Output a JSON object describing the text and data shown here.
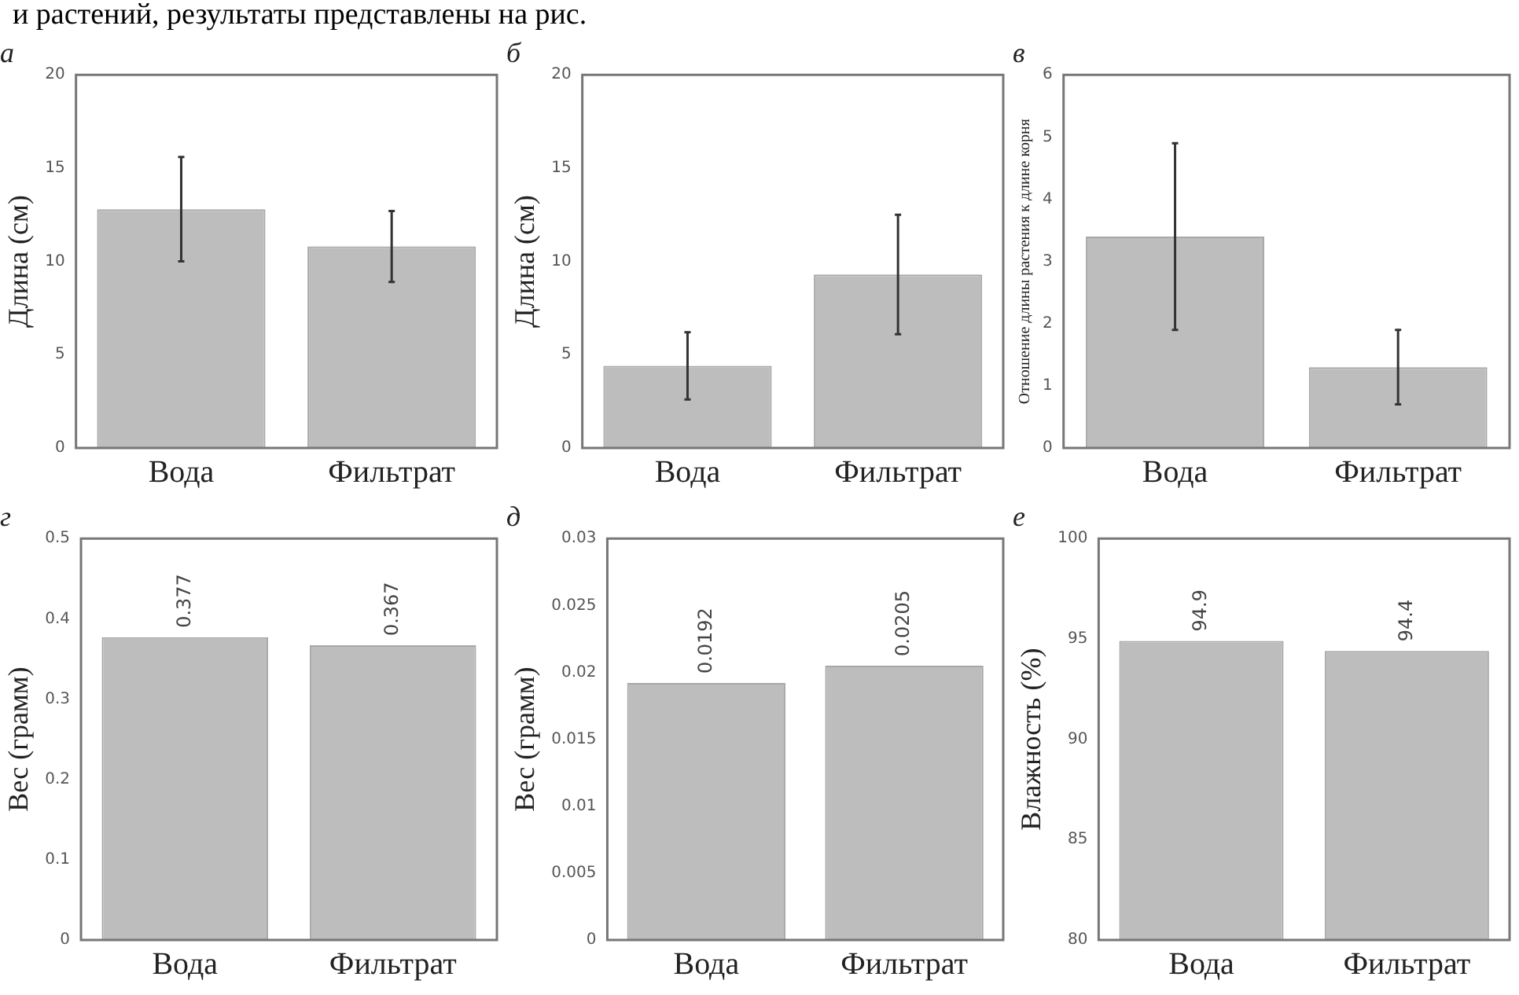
{
  "chart_data": [
    {
      "type": "bar",
      "title": "а",
      "ylabel": "Длина (см)",
      "categories": [
        "Вода",
        "Фильтрат"
      ],
      "values": [
        12.8,
        10.8
      ],
      "errors": [
        [
          10,
          15.6
        ],
        [
          8.9,
          12.7
        ]
      ],
      "color": "#bdbdbd",
      "ylim": [
        0,
        20
      ],
      "yticks": [
        0,
        5,
        10,
        15,
        20
      ],
      "grid": false,
      "legend": false,
      "annotations": [
        "и растений, результаты представлены на рис."
      ]
    },
    {
      "type": "bar",
      "title": "б",
      "ylabel": "Длина (см)",
      "categories": [
        "Вода",
        "Фильтрат"
      ],
      "values": [
        4.4,
        9.3
      ],
      "errors": [
        [
          2.6,
          6.2
        ],
        [
          6.1,
          12.5
        ]
      ],
      "color": "#bdbdbd",
      "ylim": [
        0,
        20
      ],
      "yticks": [
        0,
        5,
        10,
        15,
        20
      ],
      "grid": false,
      "legend": false
    },
    {
      "type": "bar",
      "title": "в",
      "ylabel": "Отношение длины растения к длине корня",
      "categories": [
        "Вода",
        "Фильтрат"
      ],
      "values": [
        3.4,
        1.3
      ],
      "errors": [
        [
          1.9,
          4.9
        ],
        [
          0.7,
          1.9
        ]
      ],
      "color": "#bdbdbd",
      "ylim": [
        0,
        6
      ],
      "yticks": [
        0,
        1,
        2,
        3,
        4,
        5,
        6
      ],
      "grid": false,
      "legend": false
    },
    {
      "type": "bar",
      "title": "г",
      "ylabel": "Вес (грамм)",
      "categories": [
        "Вода",
        "Фильтрат"
      ],
      "values": [
        0.377,
        0.367
      ],
      "data_labels": true,
      "color": "#bdbdbd",
      "ylim": [
        0,
        0.5
      ],
      "yticks": [
        0,
        0.1,
        0.2,
        0.3,
        0.4,
        0.5
      ],
      "grid": false,
      "legend": false
    },
    {
      "type": "bar",
      "title": "д",
      "ylabel": "Вес (грамм)",
      "categories": [
        "Вода",
        "Фильтрат"
      ],
      "values": [
        0.0192,
        0.0205
      ],
      "data_labels": true,
      "color": "#bdbdbd",
      "ylim": [
        0,
        0.03
      ],
      "yticks": [
        0,
        0.005,
        0.01,
        0.015,
        0.02,
        0.025,
        0.03
      ],
      "grid": false,
      "legend": false
    },
    {
      "type": "bar",
      "title": "е",
      "ylabel": "Влажность (%)",
      "categories": [
        "Вода",
        "Фильтрат"
      ],
      "values": [
        94.9,
        94.4
      ],
      "data_labels": true,
      "color": "#bdbdbd",
      "ylim": [
        80,
        100
      ],
      "yticks": [
        80,
        85,
        90,
        95,
        100
      ],
      "grid": false,
      "legend": false
    }
  ]
}
